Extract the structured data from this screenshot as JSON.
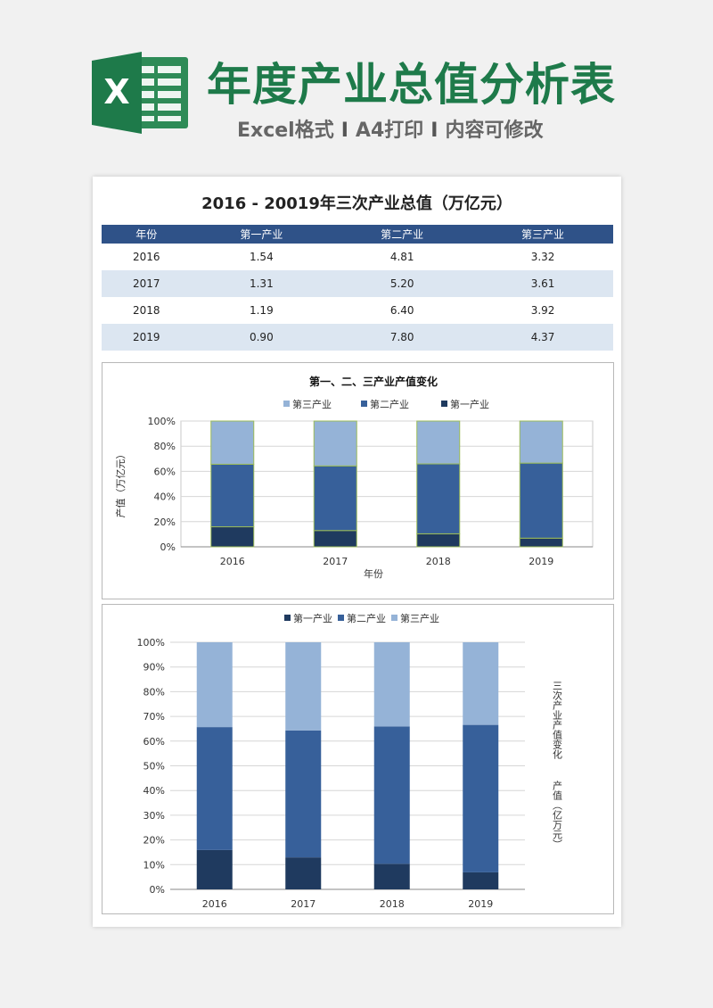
{
  "header": {
    "logo_letter": "X",
    "title": "年度产业总值分析表",
    "sub_a": "Excel格式",
    "sub_b": "A4打印",
    "sub_c": "内容可修改",
    "separator": "I"
  },
  "table": {
    "title": "2016 - 20019年三次产业总值（万亿元）",
    "columns": [
      "年份",
      "第一产业",
      "第二产业",
      "第三产业"
    ],
    "rows": [
      [
        "2016",
        "1.54",
        "4.81",
        "3.32"
      ],
      [
        "2017",
        "1.31",
        "5.20",
        "3.61"
      ],
      [
        "2018",
        "1.19",
        "6.40",
        "3.92"
      ],
      [
        "2019",
        "0.90",
        "7.80",
        "4.37"
      ]
    ]
  },
  "colors": {
    "brand_green": "#1e7a4a",
    "header_blue": "#2f5288",
    "row_stripe": "#dce6f1",
    "primary": "#1f3a5f",
    "secondary": "#37609a",
    "tertiary": "#95b3d7",
    "outline_green": "#9bbb59"
  },
  "chart_data": [
    {
      "type": "bar",
      "stacked": "percent",
      "title": "第一、二、三产业产值变化",
      "xlabel": "年份",
      "ylabel": "产值（万亿元）",
      "categories": [
        "2016",
        "2017",
        "2018",
        "2019"
      ],
      "series": [
        {
          "name": "第一产业",
          "values": [
            1.54,
            1.31,
            1.19,
            0.9
          ]
        },
        {
          "name": "第二产业",
          "values": [
            4.81,
            5.2,
            6.4,
            7.8
          ]
        },
        {
          "name": "第三产业",
          "values": [
            3.32,
            3.61,
            3.92,
            4.37
          ]
        }
      ],
      "ylim": [
        0,
        100
      ],
      "yticks": [
        "0%",
        "20%",
        "40%",
        "60%",
        "80%",
        "100%"
      ],
      "legend": "top",
      "legend_order": [
        "第三产业",
        "第二产业",
        "第一产业"
      ],
      "grid": true
    },
    {
      "type": "bar",
      "stacked": "percent",
      "title": "",
      "xlabel": "",
      "ylabel": "",
      "side_note_1": "三次产业产值变化",
      "side_note_2": "产值（亿万元）",
      "categories": [
        "2016",
        "2017",
        "2018",
        "2019"
      ],
      "series": [
        {
          "name": "第一产业",
          "values": [
            1.54,
            1.31,
            1.19,
            0.9
          ]
        },
        {
          "name": "第二产业",
          "values": [
            4.81,
            5.2,
            6.4,
            7.8
          ]
        },
        {
          "name": "第三产业",
          "values": [
            3.32,
            3.61,
            3.92,
            4.37
          ]
        }
      ],
      "ylim": [
        0,
        100
      ],
      "yticks": [
        "0%",
        "10%",
        "20%",
        "30%",
        "40%",
        "50%",
        "60%",
        "70%",
        "80%",
        "90%",
        "100%"
      ],
      "legend": "top",
      "legend_order": [
        "第一产业",
        "第二产业",
        "第三产业"
      ],
      "grid": true
    }
  ]
}
